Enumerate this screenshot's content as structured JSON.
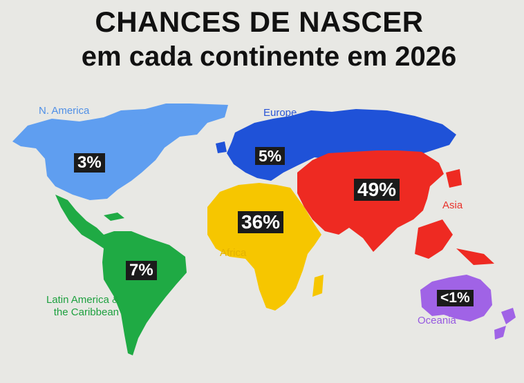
{
  "title": {
    "line1": "CHANCES DE NASCER",
    "line2": "em cada continente em 2026"
  },
  "regions": {
    "north_america": {
      "name": "N. America",
      "percent": "3%",
      "color": "#5f9ef0",
      "label_color": "#4f8fe6"
    },
    "europe": {
      "name": "Europe",
      "percent": "5%",
      "color": "#1f52d8",
      "label_color": "#2a55d6"
    },
    "asia": {
      "name": "Asia",
      "percent": "49%",
      "color": "#ee2a22",
      "label_color": "#e8312a"
    },
    "africa": {
      "name": "Africa",
      "percent": "36%",
      "color": "#f6c600",
      "label_color": "#e3b200"
    },
    "latin_america": {
      "name": "Latin America & the Caribbean",
      "name_line1": "Latin America &",
      "name_line2": "the Caribbean",
      "percent": "7%",
      "color": "#1faa44",
      "label_color": "#1ea03f"
    },
    "oceania": {
      "name": "Oceania",
      "percent": "<1%",
      "color": "#a063e6",
      "label_color": "#9659e0"
    }
  }
}
